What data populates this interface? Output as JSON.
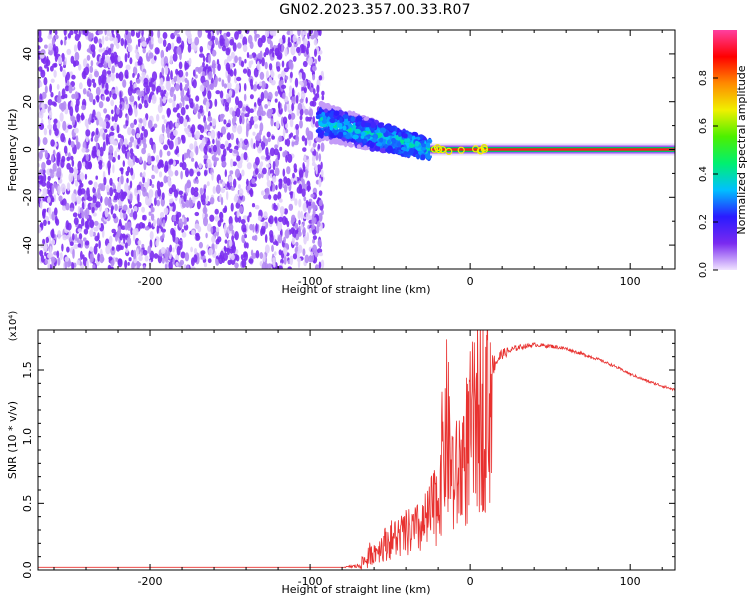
{
  "title": "GN02.2023.357.00.33.R07",
  "colors": {
    "snr_line": "#e8312f",
    "heatmap_low": "#7a2af0",
    "heatmap_faint": "#d6b8f6",
    "background": "#ffffff"
  },
  "chart_data": [
    {
      "type": "heatmap",
      "xlabel": "Height of straight line (km)",
      "ylabel": "Frequency (Hz)",
      "xlim": [
        -270,
        128
      ],
      "ylim": [
        -50,
        50
      ],
      "x_ticks": [
        -200,
        -100,
        0,
        100
      ],
      "y_ticks": [
        -40,
        -20,
        0,
        20,
        40
      ],
      "colorbar": {
        "label": "Normalized spectral amplitude",
        "range": [
          0,
          1
        ],
        "ticks": [
          "0.0",
          "0.2",
          "0.4",
          "0.6",
          "0.8"
        ],
        "stops": [
          "#f0e4ff",
          "#7a2af0",
          "#2a1bff",
          "#00c0ff",
          "#00f070",
          "#4cf000",
          "#f0f000",
          "#ff8a00",
          "#ff0000",
          "#ff3fa0"
        ]
      },
      "regions": [
        {
          "x": [
            -270,
            -90
          ],
          "y": [
            -50,
            50
          ],
          "amplitude": 0.05,
          "pattern": "noise"
        },
        {
          "x": [
            -95,
            -25
          ],
          "y_center_start": 12,
          "y_center_end": 0,
          "half_width": 8,
          "amplitude": 0.3,
          "pattern": "band"
        },
        {
          "x": [
            -25,
            128
          ],
          "y": 0,
          "amplitude": 0.9,
          "pattern": "carrier_line"
        }
      ],
      "grid": false
    },
    {
      "type": "line",
      "xlabel": "Height of straight line (km)",
      "ylabel": "SNR (10 * v/v)",
      "y_scale_label": "(x10⁴)",
      "xlim": [
        -270,
        128
      ],
      "ylim": [
        0,
        1.8
      ],
      "x_ticks": [
        -200,
        -100,
        0,
        100
      ],
      "y_ticks": [
        "0.0",
        "0.5",
        "1.0",
        "1.5"
      ],
      "series": [
        {
          "x": [
            -270,
            -200,
            -150,
            -100,
            -80,
            -70,
            -65,
            -60,
            -50,
            -40,
            -30,
            -25,
            -20,
            -15,
            -10,
            -5,
            0,
            5,
            10,
            15,
            20,
            30,
            40,
            50,
            60,
            70,
            80,
            90,
            100,
            110,
            120,
            128
          ],
          "y": [
            0.02,
            0.02,
            0.02,
            0.02,
            0.02,
            0.03,
            0.08,
            0.15,
            0.25,
            0.3,
            0.35,
            0.45,
            0.6,
            1.2,
            0.7,
            0.9,
            1.1,
            1.3,
            1.45,
            1.55,
            1.62,
            1.67,
            1.69,
            1.68,
            1.66,
            1.62,
            1.58,
            1.53,
            1.47,
            1.42,
            1.38,
            1.35
          ],
          "noise": [
            0,
            0,
            0,
            0,
            0,
            0.02,
            0.08,
            0.12,
            0.15,
            0.2,
            0.25,
            0.35,
            0.4,
            0.5,
            0.5,
            0.4,
            0.3,
            0.22,
            0.15,
            0.08,
            0.04,
            0.02,
            0.015,
            0.015,
            0.012,
            0.012,
            0.01,
            0.01,
            0.01,
            0.01,
            0.01,
            0.01
          ]
        }
      ],
      "grid": false
    }
  ]
}
